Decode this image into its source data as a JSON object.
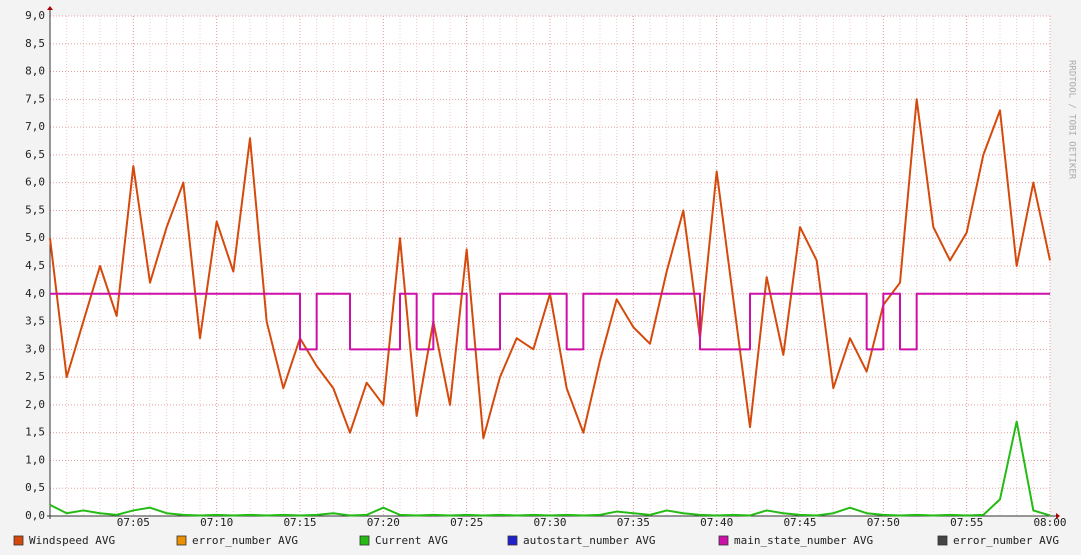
{
  "chart_data": {
    "type": "line",
    "watermark": "RRDTOOL / TOBI OETIKER",
    "x": [
      "07:00",
      "07:01",
      "07:02",
      "07:03",
      "07:04",
      "07:05",
      "07:06",
      "07:07",
      "07:08",
      "07:09",
      "07:10",
      "07:11",
      "07:12",
      "07:13",
      "07:14",
      "07:15",
      "07:16",
      "07:17",
      "07:18",
      "07:19",
      "07:20",
      "07:21",
      "07:22",
      "07:23",
      "07:24",
      "07:25",
      "07:26",
      "07:27",
      "07:28",
      "07:29",
      "07:30",
      "07:31",
      "07:32",
      "07:33",
      "07:34",
      "07:35",
      "07:36",
      "07:37",
      "07:38",
      "07:39",
      "07:40",
      "07:41",
      "07:42",
      "07:43",
      "07:44",
      "07:45",
      "07:46",
      "07:47",
      "07:48",
      "07:49",
      "07:50",
      "07:51",
      "07:52",
      "07:53",
      "07:54",
      "07:55",
      "07:56",
      "07:57",
      "07:58",
      "07:59",
      "08:00"
    ],
    "xticks": [
      "07:05",
      "07:10",
      "07:15",
      "07:20",
      "07:25",
      "07:30",
      "07:35",
      "07:40",
      "07:45",
      "07:50",
      "07:55",
      "08:00"
    ],
    "ylim": [
      0,
      9
    ],
    "yticks": [
      {
        "value": 0,
        "label": "0,0"
      },
      {
        "value": 0.5,
        "label": "0,5"
      },
      {
        "value": 1,
        "label": "1,0"
      },
      {
        "value": 1.5,
        "label": "1,5"
      },
      {
        "value": 2,
        "label": "2,0"
      },
      {
        "value": 2.5,
        "label": "2,5"
      },
      {
        "value": 3,
        "label": "3,0"
      },
      {
        "value": 3.5,
        "label": "3,5"
      },
      {
        "value": 4,
        "label": "4,0"
      },
      {
        "value": 4.5,
        "label": "4,5"
      },
      {
        "value": 5,
        "label": "5,0"
      },
      {
        "value": 5.5,
        "label": "5,5"
      },
      {
        "value": 6,
        "label": "6,0"
      },
      {
        "value": 6.5,
        "label": "6,5"
      },
      {
        "value": 7,
        "label": "7,0"
      },
      {
        "value": 7.5,
        "label": "7,5"
      },
      {
        "value": 8,
        "label": "8,0"
      },
      {
        "value": 8.5,
        "label": "8,5"
      },
      {
        "value": 9,
        "label": "9,0"
      }
    ],
    "grid": true,
    "series": [
      {
        "name": "Windspeed AVG",
        "color": "#d54a0c",
        "values": [
          5.0,
          2.5,
          3.5,
          4.5,
          3.6,
          6.3,
          4.2,
          5.2,
          6.0,
          3.2,
          5.3,
          4.4,
          6.8,
          3.5,
          2.3,
          3.2,
          2.7,
          2.3,
          1.5,
          2.4,
          2.0,
          5.0,
          1.8,
          3.5,
          2.0,
          4.8,
          1.4,
          2.5,
          3.2,
          3.0,
          4.0,
          2.3,
          1.5,
          2.8,
          3.9,
          3.4,
          3.1,
          4.4,
          5.5,
          3.2,
          6.2,
          3.9,
          1.6,
          4.3,
          2.9,
          5.2,
          4.6,
          2.3,
          3.2,
          2.6,
          3.8,
          4.2,
          7.5,
          5.2,
          4.6,
          5.1,
          6.5,
          7.3,
          4.5,
          6.0,
          4.6
        ]
      },
      {
        "name": "error_number AVG",
        "color": "#ea8f00",
        "values": [
          null,
          null,
          null,
          null,
          null,
          null,
          null,
          null,
          null,
          null,
          null,
          null,
          null,
          null,
          null,
          null,
          null,
          null,
          null,
          null,
          null,
          null,
          null,
          null,
          null,
          null,
          null,
          null,
          null,
          null,
          null,
          null,
          null,
          null,
          null,
          null,
          null,
          null,
          null,
          null,
          null,
          null,
          null,
          null,
          null,
          null,
          null,
          null,
          null,
          null,
          null,
          null,
          null,
          null,
          null,
          null,
          null,
          null,
          null,
          null,
          null
        ]
      },
      {
        "name": "Current AVG",
        "color": "#24bc14",
        "values": [
          0.2,
          0.05,
          0.1,
          0.05,
          0.02,
          0.1,
          0.15,
          0.05,
          0.02,
          0.01,
          0.02,
          0.01,
          0.02,
          0.01,
          0.02,
          0.01,
          0.02,
          0.05,
          0.01,
          0.02,
          0.15,
          0.02,
          0.01,
          0.02,
          0.01,
          0.02,
          0.01,
          0.02,
          0.01,
          0.02,
          0.01,
          0.02,
          0.01,
          0.02,
          0.08,
          0.05,
          0.02,
          0.1,
          0.05,
          0.02,
          0.01,
          0.02,
          0.01,
          0.1,
          0.05,
          0.02,
          0.01,
          0.05,
          0.15,
          0.05,
          0.02,
          0.01,
          0.02,
          0.01,
          0.02,
          0.01,
          0.02,
          0.3,
          1.7,
          0.1,
          0.01
        ]
      },
      {
        "name": "autostart_number AVG",
        "color": "#2020d0",
        "values": [
          null,
          null,
          null,
          null,
          null,
          null,
          null,
          null,
          null,
          null,
          null,
          null,
          null,
          null,
          null,
          null,
          null,
          null,
          null,
          null,
          null,
          null,
          null,
          null,
          null,
          null,
          null,
          null,
          null,
          null,
          null,
          null,
          null,
          null,
          null,
          null,
          null,
          null,
          null,
          null,
          null,
          null,
          null,
          null,
          null,
          null,
          null,
          null,
          null,
          null,
          null,
          null,
          null,
          null,
          null,
          null,
          null,
          null,
          null,
          null,
          null
        ]
      },
      {
        "name": "main_state_number AVG",
        "color": "#cc10a8",
        "values": [
          4,
          4,
          4,
          4,
          4,
          4,
          4,
          4,
          4,
          4,
          4,
          4,
          4,
          4,
          4,
          3,
          4,
          4,
          3,
          3,
          3,
          4,
          3,
          4,
          4,
          3,
          3,
          4,
          4,
          4,
          4,
          3,
          4,
          4,
          4,
          4,
          4,
          4,
          4,
          3,
          3,
          3,
          4,
          4,
          4,
          4,
          4,
          4,
          4,
          3,
          4,
          3,
          4,
          4,
          4,
          4,
          4,
          4,
          4,
          4,
          4
        ]
      },
      {
        "name": "error_number AVG",
        "color": "#444444",
        "values": [
          null,
          null,
          null,
          null,
          null,
          null,
          null,
          null,
          null,
          null,
          null,
          null,
          null,
          null,
          null,
          null,
          null,
          null,
          null,
          null,
          null,
          null,
          null,
          null,
          null,
          null,
          null,
          null,
          null,
          null,
          null,
          null,
          null,
          null,
          null,
          null,
          null,
          null,
          null,
          null,
          null,
          null,
          null,
          null,
          null,
          null,
          null,
          null,
          null,
          null,
          null,
          null,
          null,
          null,
          null,
          null,
          null,
          null,
          null,
          null,
          null
        ]
      }
    ]
  }
}
